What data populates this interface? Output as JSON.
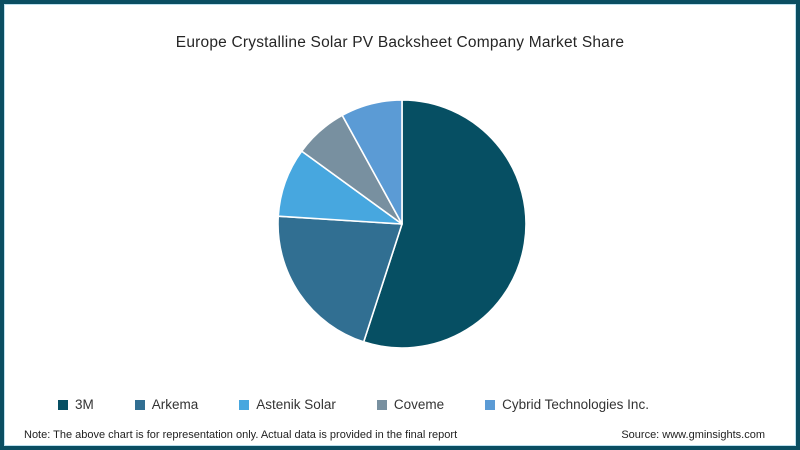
{
  "chart_data": {
    "type": "pie",
    "title": "Europe Crystalline Solar PV Backsheet  Company Market Share",
    "labels": [
      "3M",
      "Arkema",
      "Astenik Solar",
      "Coveme",
      "Cybrid Technologies Inc."
    ],
    "values": [
      55,
      21,
      9,
      7,
      8
    ],
    "colors": [
      "#064F63",
      "#316F92",
      "#47A7DF",
      "#7890A0",
      "#5B9BD5"
    ],
    "slice_border_color": "#FFFFFF",
    "start_angle_deg": 0,
    "direction": "clockwise",
    "legend_position": "bottom"
  },
  "footer": {
    "note": "Note: The above chart is for representation only. Actual data is provided in the final report",
    "source": "Source: www.gminsights.com"
  },
  "colors": {
    "frame_border": "#0B4E62",
    "inner_line": "#BCE0EF",
    "title_text": "#262626",
    "legend_text": "#333333",
    "footer_text": "#1F1F1F"
  }
}
